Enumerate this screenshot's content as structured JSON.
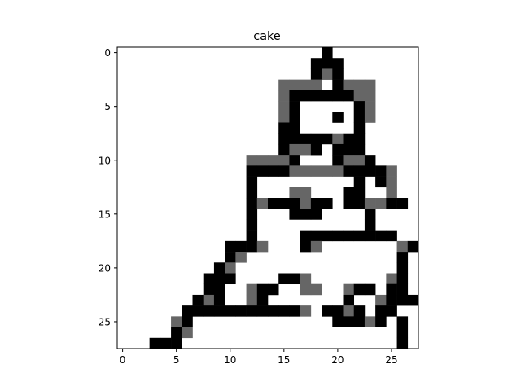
{
  "chart_data": {
    "type": "heatmap",
    "title": "cake",
    "xlabel": "",
    "ylabel": "",
    "xlim": [
      -0.5,
      27.5
    ],
    "ylim": [
      27.5,
      -0.5
    ],
    "xticks": [
      0,
      5,
      10,
      15,
      20,
      25
    ],
    "yticks": [
      0,
      5,
      10,
      15,
      20,
      25
    ],
    "grid": false,
    "colormap": "gray_r",
    "legend": "none",
    "colors": {
      "black": "#000000",
      "gray": "#666666",
      "white": "#ffffff"
    },
    "value_key": "rows are image rows 0-27 top to bottom, one character per column 0-27: '.' = 0 (white), 'g' = 0.6 (gray), '#' = 1 (black)",
    "grid_rows": [
      "...................#........",
      "..................###.......",
      "..................#g#.......",
      "...............gggg.#ggg....",
      "...............g######gg....",
      "...............g#.....#g....",
      "...............g#...#.#g....",
      "...............##.....#.....",
      "...............#####g##.....",
      "...............#gg#.###.....",
      "............gggg#...#gg#....",
      "............####ggggg####g..",
      "............#.........#.#g..",
      "............#...gg...##..g..",
      "............#g###g##.##gg##.",
      "............#...###....#....",
      "............#..........#....",
      "............#....#########..",
      "..........###g...#g.......g#",
      "..........#g..............#.",
      ".........#g...............#.",
      "........###....##g.......g#.",
      "........##..g##..gg..g##.##.",
      ".......#g#..g#.......#..g###",
      "......###########g.##g#.##..",
      ".....g#.............###g#.#.",
      ".....#g...................#.",
      "...###....................#."
    ]
  }
}
